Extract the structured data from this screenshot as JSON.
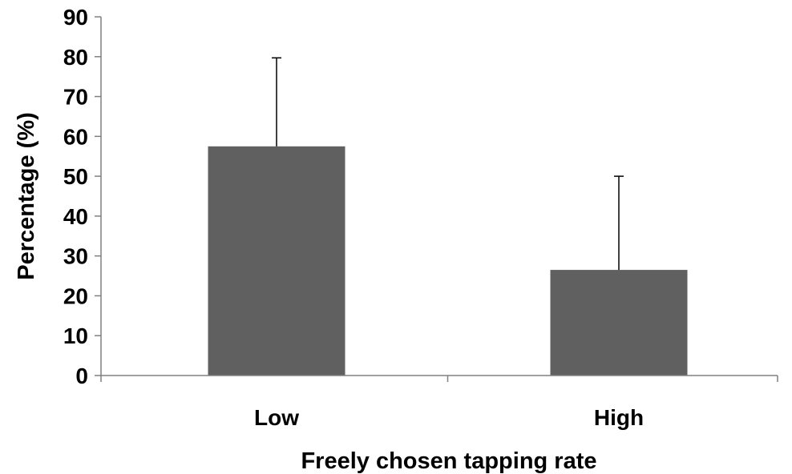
{
  "chart_data": {
    "type": "bar",
    "title": "",
    "xlabel": "Freely chosen tapping rate",
    "ylabel": "Percentage (%)",
    "categories": [
      "Low",
      "High"
    ],
    "values": [
      57.5,
      26.5
    ],
    "error_bars": [
      22.2,
      23.5
    ],
    "ylim": [
      0,
      90
    ],
    "yticks": [
      0,
      10,
      20,
      30,
      40,
      50,
      60,
      70,
      80,
      90
    ],
    "ytick_labels": [
      "0",
      "10",
      "20",
      "30",
      "40",
      "50",
      "60",
      "70",
      "80",
      "90"
    ],
    "grid": false,
    "legend": "none",
    "bar_color": "#606060",
    "axis_color": "#808080"
  }
}
